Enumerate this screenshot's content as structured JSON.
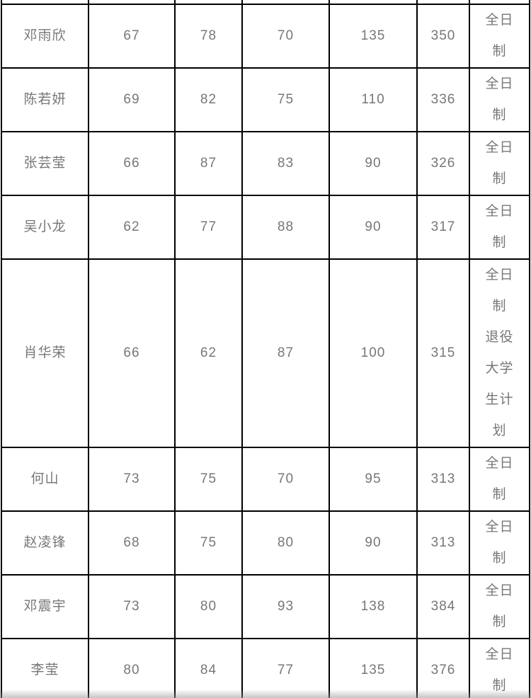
{
  "ui": {
    "background_color": "#ffffff",
    "border_color": "#000000",
    "text_color": "#777777"
  },
  "table": {
    "rows": [
      {
        "cells": [
          "邓雨欣",
          "67",
          "78",
          "70",
          "135",
          "350",
          "全日制"
        ]
      },
      {
        "cells": [
          "陈若妍",
          "69",
          "82",
          "75",
          "110",
          "336",
          "全日制"
        ]
      },
      {
        "cells": [
          "张芸莹",
          "66",
          "87",
          "83",
          "90",
          "326",
          "全日制"
        ]
      },
      {
        "cells": [
          "吴小龙",
          "62",
          "77",
          "88",
          "90",
          "317",
          "全日制"
        ]
      },
      {
        "cells": [
          "肖华荣",
          "66",
          "62",
          "87",
          "100",
          "315",
          "全日制 退役大学生计划"
        ]
      },
      {
        "cells": [
          "何山",
          "73",
          "75",
          "70",
          "95",
          "313",
          "全日制"
        ]
      },
      {
        "cells": [
          "赵凌锋",
          "68",
          "75",
          "80",
          "90",
          "313",
          "全日制"
        ]
      },
      {
        "cells": [
          "邓震宇",
          "73",
          "80",
          "93",
          "138",
          "384",
          "全日制"
        ]
      },
      {
        "cells": [
          "李莹",
          "80",
          "84",
          "77",
          "135",
          "376",
          "全日制"
        ]
      }
    ]
  }
}
